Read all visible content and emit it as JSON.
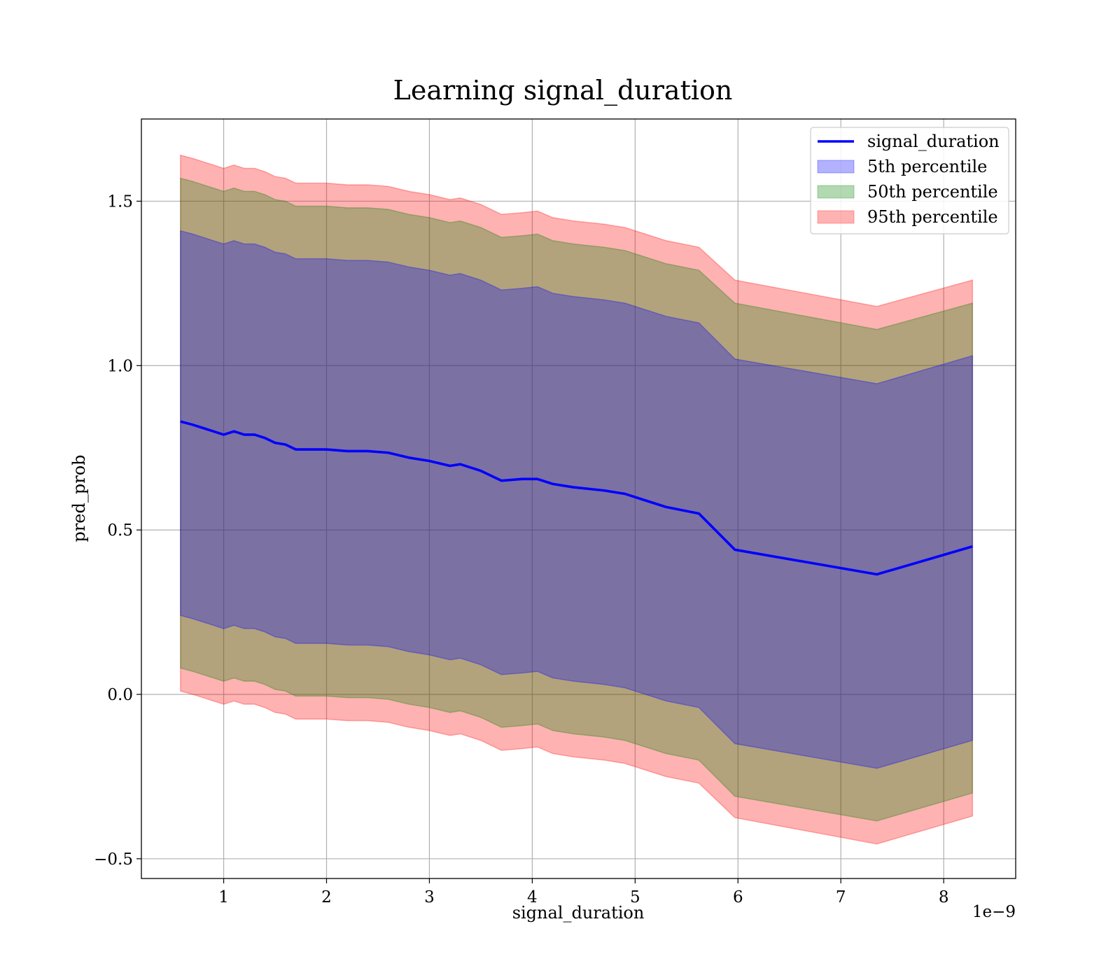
{
  "chart_data": {
    "type": "area",
    "title": "Learning signal_duration",
    "xlabel": "signal_duration",
    "ylabel": "pred_prob",
    "x_offset_label": "1e−9",
    "xlim": [
      0.2,
      8.7
    ],
    "ylim": [
      -0.56,
      1.75
    ],
    "x_ticks": [
      1,
      2,
      3,
      4,
      5,
      6,
      7,
      8
    ],
    "x_tick_labels": [
      "1",
      "2",
      "3",
      "4",
      "5",
      "6",
      "7",
      "8"
    ],
    "y_ticks": [
      -0.5,
      0.0,
      0.5,
      1.0,
      1.5
    ],
    "y_tick_labels": [
      "−0.5",
      "0.0",
      "0.5",
      "1.0",
      "1.5"
    ],
    "grid": true,
    "legend_position": "top-right",
    "x": [
      0.58,
      0.7,
      0.8,
      0.9,
      1.0,
      1.1,
      1.2,
      1.3,
      1.4,
      1.5,
      1.6,
      1.7,
      1.8,
      2.0,
      2.2,
      2.4,
      2.6,
      2.8,
      3.0,
      3.2,
      3.3,
      3.5,
      3.7,
      3.9,
      4.05,
      4.2,
      4.4,
      4.7,
      4.9,
      5.1,
      5.3,
      5.62,
      5.97,
      7.35,
      8.28
    ],
    "series": [
      {
        "name": "signal_duration",
        "kind": "line",
        "color": "#0000ff",
        "values": [
          0.83,
          0.82,
          0.81,
          0.8,
          0.79,
          0.8,
          0.79,
          0.79,
          0.78,
          0.765,
          0.76,
          0.745,
          0.745,
          0.745,
          0.74,
          0.74,
          0.735,
          0.72,
          0.71,
          0.695,
          0.7,
          0.68,
          0.65,
          0.655,
          0.655,
          0.64,
          0.63,
          0.62,
          0.61,
          0.59,
          0.57,
          0.55,
          0.44,
          0.365,
          0.45
        ]
      },
      {
        "name": "5th percentile",
        "kind": "band",
        "color": "#0000ff",
        "opacity": 0.3,
        "upper": [
          1.41,
          1.4,
          1.39,
          1.38,
          1.37,
          1.38,
          1.37,
          1.37,
          1.36,
          1.345,
          1.34,
          1.325,
          1.325,
          1.325,
          1.32,
          1.32,
          1.315,
          1.3,
          1.29,
          1.275,
          1.28,
          1.26,
          1.23,
          1.235,
          1.24,
          1.22,
          1.21,
          1.2,
          1.19,
          1.17,
          1.15,
          1.13,
          1.02,
          0.945,
          1.03
        ],
        "lower": [
          0.24,
          0.23,
          0.22,
          0.21,
          0.2,
          0.21,
          0.2,
          0.2,
          0.19,
          0.175,
          0.17,
          0.155,
          0.155,
          0.155,
          0.15,
          0.15,
          0.145,
          0.13,
          0.12,
          0.105,
          0.11,
          0.09,
          0.06,
          0.065,
          0.07,
          0.05,
          0.04,
          0.03,
          0.02,
          0.0,
          -0.02,
          -0.04,
          -0.15,
          -0.225,
          -0.14
        ]
      },
      {
        "name": "50th percentile",
        "kind": "band",
        "color": "#008000",
        "opacity": 0.3,
        "upper": [
          1.57,
          1.56,
          1.55,
          1.54,
          1.53,
          1.54,
          1.53,
          1.53,
          1.52,
          1.505,
          1.5,
          1.485,
          1.485,
          1.485,
          1.48,
          1.48,
          1.475,
          1.46,
          1.45,
          1.435,
          1.44,
          1.42,
          1.39,
          1.395,
          1.4,
          1.38,
          1.37,
          1.36,
          1.35,
          1.33,
          1.31,
          1.29,
          1.19,
          1.11,
          1.19
        ],
        "lower": [
          0.08,
          0.07,
          0.06,
          0.05,
          0.04,
          0.05,
          0.04,
          0.04,
          0.03,
          0.015,
          0.01,
          -0.005,
          -0.005,
          -0.005,
          -0.01,
          -0.01,
          -0.015,
          -0.03,
          -0.04,
          -0.055,
          -0.05,
          -0.07,
          -0.1,
          -0.095,
          -0.09,
          -0.11,
          -0.12,
          -0.13,
          -0.14,
          -0.16,
          -0.18,
          -0.2,
          -0.31,
          -0.385,
          -0.3
        ]
      },
      {
        "name": "95th percentile",
        "kind": "band",
        "color": "#ff0000",
        "opacity": 0.3,
        "upper": [
          1.64,
          1.63,
          1.62,
          1.61,
          1.6,
          1.61,
          1.6,
          1.6,
          1.59,
          1.575,
          1.57,
          1.555,
          1.555,
          1.555,
          1.55,
          1.55,
          1.545,
          1.53,
          1.52,
          1.505,
          1.51,
          1.49,
          1.46,
          1.465,
          1.47,
          1.45,
          1.44,
          1.43,
          1.42,
          1.4,
          1.38,
          1.36,
          1.26,
          1.18,
          1.26
        ],
        "lower": [
          0.01,
          0.0,
          -0.01,
          -0.02,
          -0.03,
          -0.02,
          -0.03,
          -0.03,
          -0.04,
          -0.055,
          -0.06,
          -0.075,
          -0.075,
          -0.075,
          -0.08,
          -0.08,
          -0.085,
          -0.1,
          -0.11,
          -0.125,
          -0.12,
          -0.14,
          -0.17,
          -0.165,
          -0.16,
          -0.18,
          -0.19,
          -0.2,
          -0.21,
          -0.23,
          -0.25,
          -0.27,
          -0.375,
          -0.455,
          -0.37
        ]
      }
    ]
  }
}
